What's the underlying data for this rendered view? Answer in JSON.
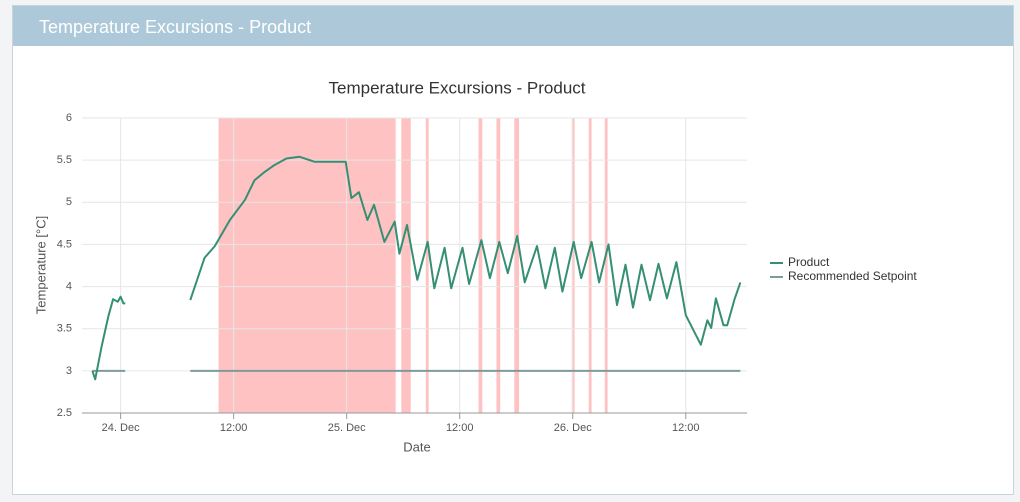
{
  "header": {
    "title": "Temperature Excursions - Product"
  },
  "chart_data": {
    "type": "line",
    "title": "Temperature Excursions - Product",
    "x_label": "Date",
    "y_label": "Temperature [°C]",
    "xlim": [
      -4.1,
      66.5
    ],
    "ylim": [
      2.5,
      6
    ],
    "xticks": [
      {
        "value": 0,
        "label": "24. Dec"
      },
      {
        "value": 12,
        "label": "12:00"
      },
      {
        "value": 24,
        "label": "25. Dec"
      },
      {
        "value": 36,
        "label": "12:00"
      },
      {
        "value": 48,
        "label": "26. Dec"
      },
      {
        "value": 60,
        "label": "12:00"
      }
    ],
    "yticks": [
      2.5,
      3,
      3.5,
      4,
      4.5,
      5,
      5.5,
      6
    ],
    "grid": true,
    "legend": "right",
    "band_color": "#ffc2c2",
    "bands": [
      {
        "from": 10.4,
        "to": 29.2
      },
      {
        "from": 29.8,
        "to": 30.8
      },
      {
        "from": 32.4,
        "to": 32.7
      },
      {
        "from": 38.0,
        "to": 38.4
      },
      {
        "from": 39.9,
        "to": 40.3
      },
      {
        "from": 41.8,
        "to": 42.3
      },
      {
        "from": 47.9,
        "to": 48.2
      },
      {
        "from": 49.7,
        "to": 50.0
      },
      {
        "from": 51.4,
        "to": 51.7
      }
    ],
    "series": [
      {
        "name": "Product",
        "color": "#358f74",
        "x": [
          -3,
          -2.7,
          -2,
          -1.3,
          -0.8,
          -0.3,
          0,
          0.3,
          0.5,
          null,
          7.4,
          8.9,
          10.0,
          11.6,
          13.2,
          14.2,
          15.3,
          16.3,
          17.6,
          19.0,
          20.6,
          22.2,
          23.9,
          24.5,
          25.3,
          26.2,
          26.9,
          28.0,
          29.1,
          29.6,
          30.4,
          31.5,
          32.6,
          33.3,
          34.4,
          35.1,
          36.3,
          37.0,
          38.3,
          39.2,
          40.2,
          41.1,
          42.1,
          42.9,
          44.2,
          45.1,
          46.1,
          46.9,
          48.1,
          48.9,
          50.0,
          50.8,
          51.8,
          52.7,
          53.6,
          54.4,
          55.3,
          56.2,
          57.1,
          58.0,
          59.0,
          60.0,
          61.6,
          62.3,
          62.7,
          63.2,
          64.0,
          64.4,
          65.2,
          65.8
        ],
        "values": [
          3.0,
          2.9,
          3.3,
          3.65,
          3.85,
          3.82,
          3.88,
          3.8,
          3.8,
          null,
          3.84,
          4.34,
          4.48,
          4.79,
          5.03,
          5.26,
          5.36,
          5.44,
          5.52,
          5.54,
          5.48,
          5.48,
          5.48,
          5.05,
          5.12,
          4.79,
          4.97,
          4.53,
          4.77,
          4.39,
          4.73,
          4.08,
          4.53,
          3.98,
          4.46,
          3.98,
          4.46,
          4.03,
          4.55,
          4.1,
          4.53,
          4.16,
          4.6,
          4.05,
          4.48,
          3.98,
          4.46,
          3.94,
          4.53,
          4.1,
          4.53,
          4.05,
          4.5,
          3.78,
          4.26,
          3.75,
          4.26,
          3.84,
          4.27,
          3.86,
          4.29,
          3.66,
          3.31,
          3.6,
          3.51,
          3.86,
          3.54,
          3.54,
          3.86,
          4.05
        ]
      },
      {
        "name": "Recommended Setpoint",
        "color": "#7f9a9c",
        "x": [
          -3,
          0.5,
          null,
          7.4,
          65.8
        ],
        "values": [
          3,
          3,
          null,
          3,
          3
        ]
      }
    ]
  }
}
